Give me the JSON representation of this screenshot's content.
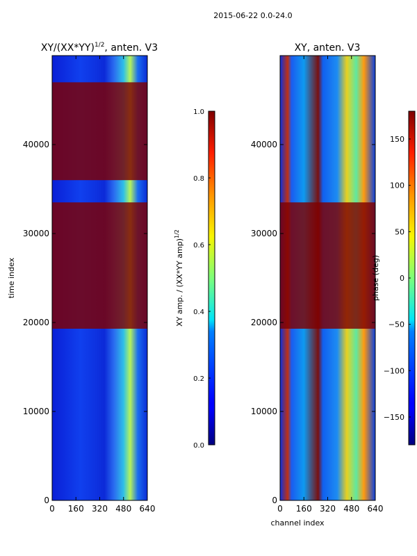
{
  "suptitle": "2015-06-22 0.0-24.0",
  "chart_data": [
    {
      "type": "heatmap",
      "title_prefix": "XY/(XX*YY)",
      "title_exponent": "1/2",
      "title_suffix": ", anten. V3",
      "xlabel": "",
      "ylabel": "time index",
      "xlim": [
        0,
        640
      ],
      "ylim": [
        0,
        50000
      ],
      "xticks": [
        "0",
        "160",
        "320",
        "480",
        "640"
      ],
      "xtick_values": [
        0,
        160,
        320,
        480,
        640
      ],
      "yticks": [
        "0",
        "10000",
        "20000",
        "30000",
        "40000"
      ],
      "ytick_values": [
        0,
        10000,
        20000,
        30000,
        40000
      ],
      "colorbar": {
        "label_prefix": "XY amp. / (XX*YY amp)",
        "label_exponent": "1/2",
        "range": [
          0.0,
          1.0
        ],
        "ticks": [
          "0.0",
          "0.2",
          "0.4",
          "0.6",
          "0.8",
          "1.0"
        ],
        "tick_values": [
          0.0,
          0.2,
          0.4,
          0.6,
          0.8,
          1.0
        ]
      },
      "flagged_row_bands": [
        [
          19300,
          33500
        ],
        [
          36000,
          47000
        ]
      ]
    },
    {
      "type": "heatmap",
      "title": "XY, anten. V3",
      "xlabel": "channel index",
      "ylabel": "",
      "xlim": [
        0,
        640
      ],
      "ylim": [
        0,
        50000
      ],
      "xticks": [
        "0",
        "160",
        "320",
        "480",
        "640"
      ],
      "xtick_values": [
        0,
        160,
        320,
        480,
        640
      ],
      "yticks": [
        "0",
        "10000",
        "20000",
        "30000",
        "40000"
      ],
      "ytick_values": [
        0,
        10000,
        20000,
        30000,
        40000
      ],
      "colorbar": {
        "label": "phase (deg)",
        "range": [
          -180,
          180
        ],
        "ticks": [
          "−150",
          "−100",
          "−50",
          "0",
          "50",
          "100",
          "150"
        ],
        "tick_values": [
          -150,
          -100,
          -50,
          0,
          50,
          100,
          150
        ]
      },
      "flagged_row_bands": [
        [
          19300,
          33500
        ]
      ]
    }
  ]
}
